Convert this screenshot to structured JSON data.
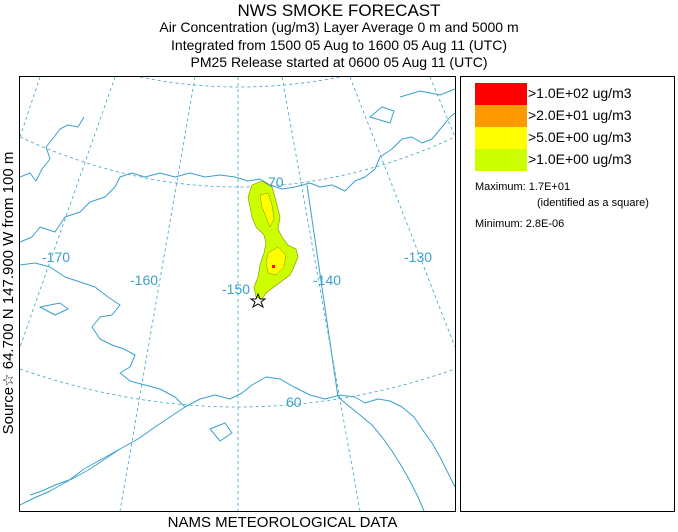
{
  "header": {
    "title": "NWS SMOKE FORECAST",
    "line2": "Air Concentration (ug/m3) Layer Average    0 m and  5000 m",
    "line3": "Integrated from 1500 05 Aug to 1600 05 Aug 11 (UTC)",
    "line4": "PM25 Release started at 0600 05 Aug 11 (UTC)"
  },
  "side_label": "Source☆ 64.700  N 147.900  W    from  100 m",
  "footer": "NAMS METEOROLOGICAL DATA",
  "map": {
    "labels": [
      "-170",
      "-160",
      "-150",
      "-140",
      "-130",
      "70",
      "60"
    ],
    "colors": {
      "coast": "#3aa0cc",
      "grid": "#3aa0cc",
      "border": "#3aa0cc"
    }
  },
  "legend": {
    "entries": [
      {
        "label": ">1.0E+02 ug/m3",
        "color": "#ff0000"
      },
      {
        "label": ">2.0E+01 ug/m3",
        "color": "#ff9900"
      },
      {
        "label": ">5.0E+00 ug/m3",
        "color": "#ffff00"
      },
      {
        "label": ">1.0E+00 ug/m3",
        "color": "#ccff00"
      }
    ],
    "maximum_label": "Maximum:",
    "maximum_value": "1.7E+01",
    "maximum_note": "(identified as a square)",
    "minimum_label": "Minimum:",
    "minimum_value": "2.8E-06"
  }
}
